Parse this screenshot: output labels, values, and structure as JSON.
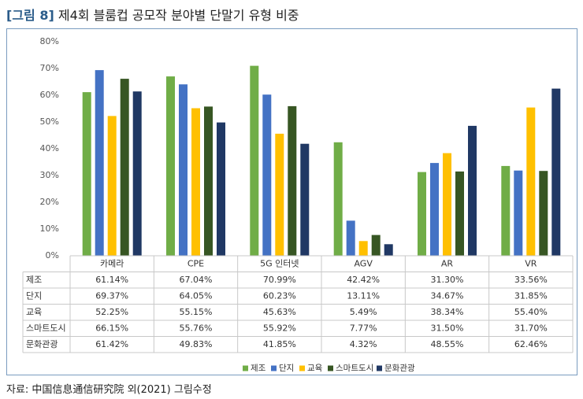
{
  "figure": {
    "tag": "[그림 8]",
    "title": "제4회 블룸컵 공모작 분야별 단말기 유형 비중"
  },
  "source": "자료: 中国信息通信研究院 외(2021) 그림수정",
  "colors": {
    "제조": "#70ad47",
    "단지": "#4472c4",
    "교육": "#ffc000",
    "스마트도시": "#375623",
    "문화관광": "#203864",
    "frame": "#7a9cc0"
  },
  "chart_data": {
    "type": "bar",
    "title": "",
    "xlabel": "",
    "ylabel": "",
    "ylim": [
      0,
      80
    ],
    "y_ticks": [
      "0%",
      "10%",
      "20%",
      "30%",
      "40%",
      "50%",
      "60%",
      "70%",
      "80%"
    ],
    "grid": false,
    "legend_position": "bottom",
    "categories": [
      "카메라",
      "CPE",
      "5G 인터넷",
      "AGV",
      "AR",
      "VR"
    ],
    "series": [
      {
        "name": "제조",
        "values": [
          61.14,
          67.04,
          70.99,
          42.42,
          31.3,
          33.56
        ],
        "labels": [
          "61.14%",
          "67.04%",
          "70.99%",
          "42.42%",
          "31.30%",
          "33.56%"
        ]
      },
      {
        "name": "단지",
        "values": [
          69.37,
          64.05,
          60.23,
          13.11,
          34.67,
          31.85
        ],
        "labels": [
          "69.37%",
          "64.05%",
          "60.23%",
          "13.11%",
          "34.67%",
          "31.85%"
        ]
      },
      {
        "name": "교육",
        "values": [
          52.25,
          55.15,
          45.63,
          5.49,
          38.34,
          55.4
        ],
        "labels": [
          "52.25%",
          "55.15%",
          "45.63%",
          "5.49%",
          "38.34%",
          "55.40%"
        ]
      },
      {
        "name": "스마트도시",
        "values": [
          66.15,
          55.76,
          55.92,
          7.77,
          31.5,
          31.7
        ],
        "labels": [
          "66.15%",
          "55.76%",
          "55.92%",
          "7.77%",
          "31.50%",
          "31.70%"
        ]
      },
      {
        "name": "문화관광",
        "values": [
          61.42,
          49.83,
          41.85,
          4.32,
          48.55,
          62.46
        ],
        "labels": [
          "61.42%",
          "49.83%",
          "41.85%",
          "4.32%",
          "48.55%",
          "62.46%"
        ]
      }
    ]
  }
}
